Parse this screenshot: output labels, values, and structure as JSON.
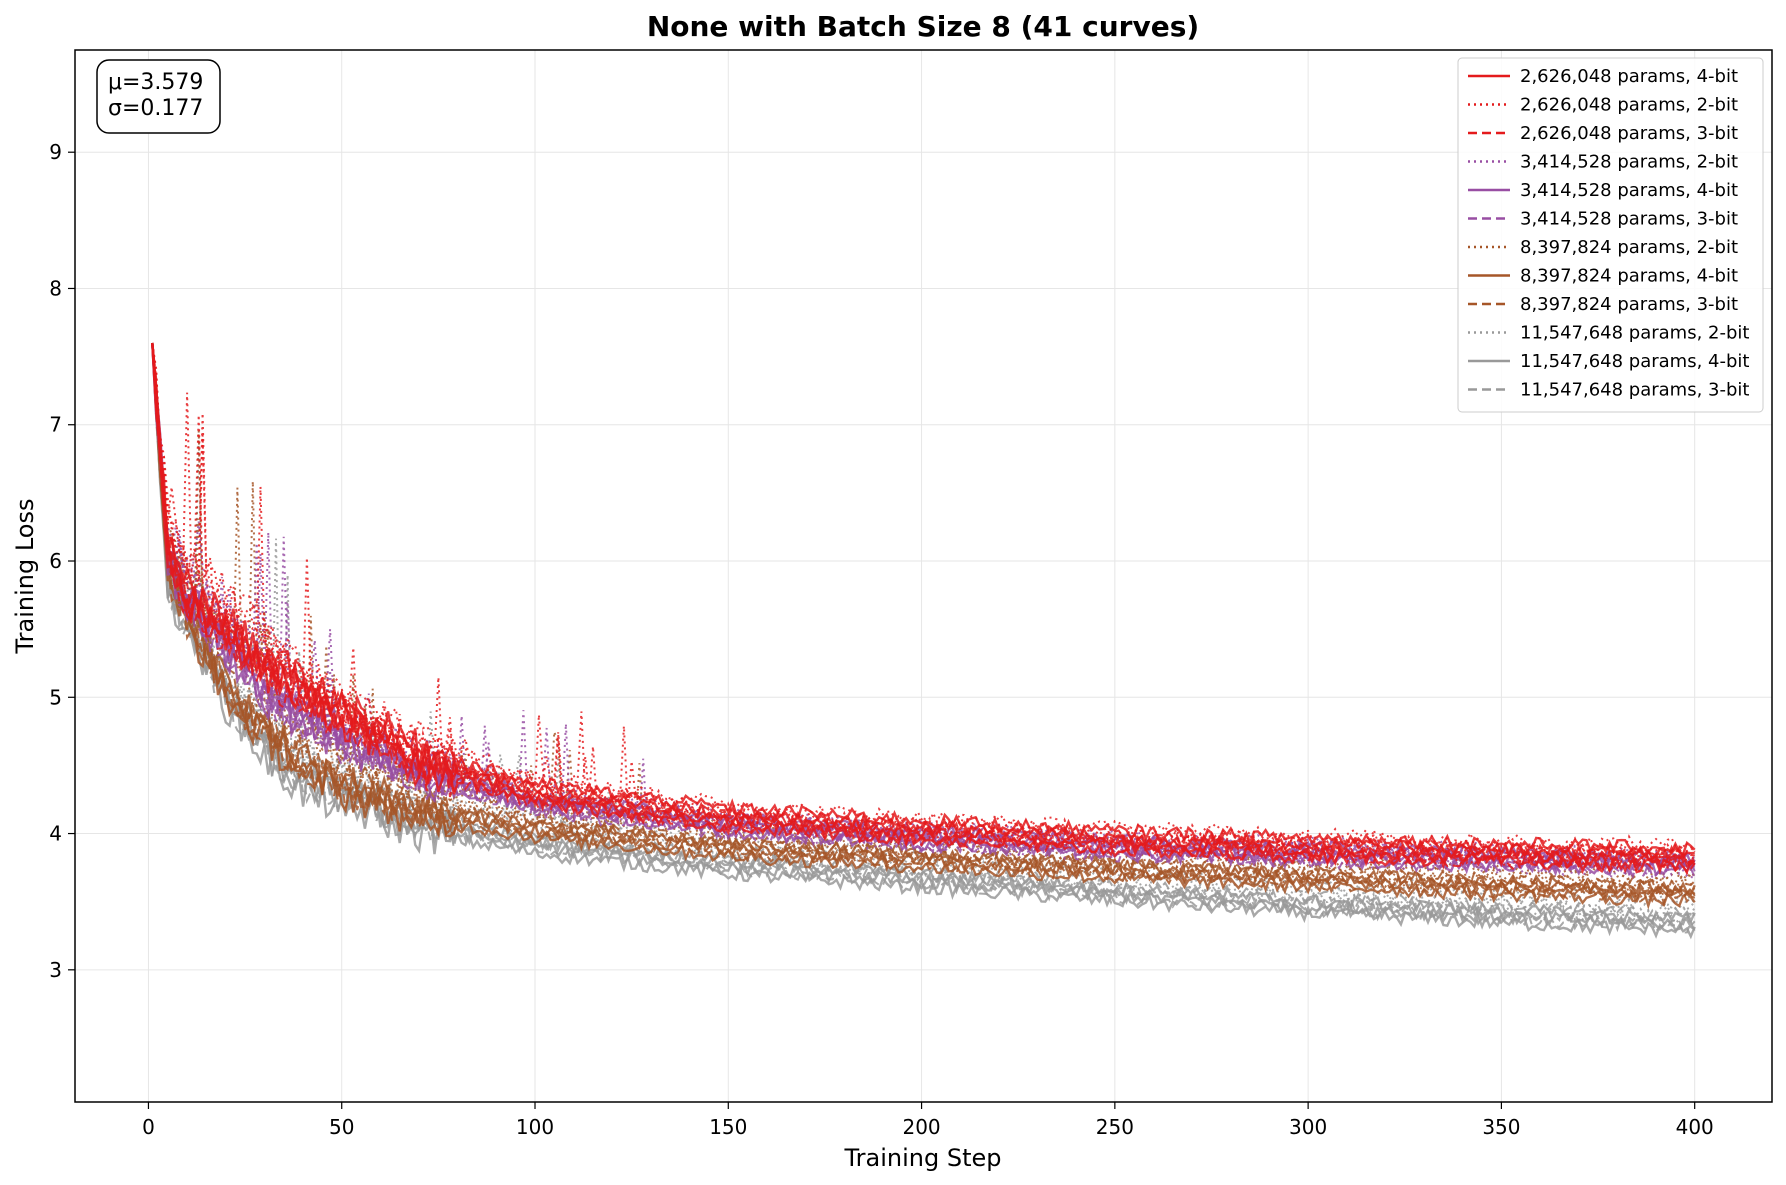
{
  "chart_data": {
    "type": "line",
    "title": "None with Batch Size 8 (41 curves)",
    "xlabel": "Training Step",
    "ylabel": "Training Loss",
    "xlim": [
      -19,
      420
    ],
    "ylim": [
      2.03,
      9.75
    ],
    "xticks": [
      0,
      50,
      100,
      150,
      200,
      250,
      300,
      350,
      400
    ],
    "yticks": [
      3,
      4,
      5,
      6,
      7,
      8,
      9
    ],
    "grid": true,
    "legend_position": "top-right",
    "stats": {
      "mu": "μ=3.579",
      "sigma": "σ=0.177"
    },
    "total_curves": 41,
    "colors": {
      "red": "#e41a1c",
      "purple": "#984ea3",
      "brown": "#a65628",
      "gray": "#999999"
    },
    "series": [
      {
        "name": "2,626,048 params, 4-bit",
        "color": "#e41a1c",
        "style": "solid",
        "x": [
          1,
          5,
          10,
          20,
          30,
          40,
          50,
          70,
          100,
          150,
          200,
          250,
          300,
          350,
          400
        ],
        "y": [
          7.6,
          6.1,
          5.75,
          5.5,
          5.25,
          5.05,
          4.9,
          4.55,
          4.3,
          4.12,
          4.03,
          3.95,
          3.9,
          3.86,
          3.82
        ],
        "copies": 4
      },
      {
        "name": "2,626,048 params, 2-bit",
        "color": "#e41a1c",
        "style": "dotted",
        "x": [
          1,
          5,
          10,
          20,
          30,
          40,
          50,
          70,
          100,
          150,
          200,
          250,
          300,
          350,
          400
        ],
        "y": [
          7.6,
          6.3,
          6.0,
          5.7,
          5.45,
          5.15,
          4.95,
          4.65,
          4.35,
          4.15,
          4.05,
          3.98,
          3.93,
          3.88,
          3.85
        ],
        "copies": 4
      },
      {
        "name": "2,626,048 params, 3-bit",
        "color": "#e41a1c",
        "style": "dashed",
        "x": [
          1,
          5,
          10,
          20,
          30,
          40,
          50,
          70,
          100,
          150,
          200,
          250,
          300,
          350,
          400
        ],
        "y": [
          7.6,
          6.05,
          5.7,
          5.45,
          5.2,
          5.0,
          4.85,
          4.5,
          4.27,
          4.1,
          4.0,
          3.93,
          3.88,
          3.84,
          3.8
        ],
        "copies": 3
      },
      {
        "name": "3,414,528 params, 2-bit",
        "color": "#984ea3",
        "style": "dotted",
        "x": [
          1,
          5,
          10,
          20,
          30,
          40,
          50,
          70,
          100,
          150,
          200,
          250,
          300,
          350,
          400
        ],
        "y": [
          7.6,
          6.2,
          5.95,
          5.55,
          5.2,
          4.95,
          4.8,
          4.5,
          4.25,
          4.08,
          3.98,
          3.92,
          3.87,
          3.82,
          3.78
        ],
        "copies": 4
      },
      {
        "name": "3,414,528 params, 4-bit",
        "color": "#984ea3",
        "style": "solid",
        "x": [
          1,
          5,
          10,
          20,
          30,
          40,
          50,
          70,
          100,
          150,
          200,
          250,
          300,
          350,
          400
        ],
        "y": [
          7.6,
          6.0,
          5.7,
          5.4,
          5.05,
          4.85,
          4.7,
          4.45,
          4.23,
          4.06,
          3.97,
          3.9,
          3.85,
          3.81,
          3.78
        ],
        "copies": 3
      },
      {
        "name": "3,414,528 params, 3-bit",
        "color": "#984ea3",
        "style": "dashed",
        "x": [
          1,
          5,
          10,
          20,
          30,
          40,
          50,
          70,
          100,
          150,
          200,
          250,
          300,
          350,
          400
        ],
        "y": [
          7.6,
          6.0,
          5.68,
          5.38,
          5.03,
          4.83,
          4.68,
          4.43,
          4.21,
          4.05,
          3.96,
          3.89,
          3.84,
          3.8,
          3.77
        ],
        "copies": 3
      },
      {
        "name": "8,397,824 params, 2-bit",
        "color": "#a65628",
        "style": "dotted",
        "x": [
          1,
          5,
          10,
          20,
          30,
          40,
          50,
          70,
          100,
          150,
          200,
          250,
          300,
          350,
          400
        ],
        "y": [
          7.6,
          6.1,
          5.85,
          5.45,
          5.05,
          4.75,
          4.6,
          4.35,
          4.15,
          3.98,
          3.88,
          3.8,
          3.74,
          3.68,
          3.63
        ],
        "copies": 4
      },
      {
        "name": "8,397,824 params, 4-bit",
        "color": "#a65628",
        "style": "solid",
        "x": [
          1,
          5,
          10,
          20,
          30,
          40,
          50,
          70,
          100,
          150,
          200,
          250,
          300,
          350,
          400
        ],
        "y": [
          7.6,
          5.9,
          5.6,
          5.05,
          4.75,
          4.5,
          4.35,
          4.15,
          4.02,
          3.88,
          3.8,
          3.72,
          3.66,
          3.6,
          3.55
        ],
        "copies": 3
      },
      {
        "name": "8,397,824 params, 3-bit",
        "color": "#a65628",
        "style": "dashed",
        "x": [
          1,
          5,
          10,
          20,
          30,
          40,
          50,
          70,
          100,
          150,
          200,
          250,
          300,
          350,
          400
        ],
        "y": [
          7.6,
          5.92,
          5.62,
          5.1,
          4.78,
          4.52,
          4.38,
          4.18,
          4.05,
          3.9,
          3.82,
          3.74,
          3.68,
          3.62,
          3.57
        ],
        "copies": 3
      },
      {
        "name": "11,547,648 params, 2-bit",
        "color": "#999999",
        "style": "dotted",
        "x": [
          1,
          5,
          10,
          20,
          30,
          40,
          50,
          70,
          100,
          150,
          200,
          250,
          300,
          350,
          400
        ],
        "y": [
          7.6,
          6.05,
          5.75,
          5.2,
          4.8,
          4.55,
          4.45,
          4.2,
          4.05,
          3.88,
          3.76,
          3.67,
          3.58,
          3.51,
          3.45
        ],
        "copies": 4
      },
      {
        "name": "11,547,648 params, 4-bit",
        "color": "#999999",
        "style": "solid",
        "x": [
          1,
          5,
          10,
          20,
          30,
          40,
          50,
          70,
          100,
          150,
          200,
          250,
          300,
          350,
          400
        ],
        "y": [
          7.6,
          5.8,
          5.55,
          5.0,
          4.6,
          4.35,
          4.25,
          4.05,
          3.9,
          3.75,
          3.65,
          3.55,
          3.46,
          3.39,
          3.33
        ],
        "copies": 3
      },
      {
        "name": "11,547,648 params, 3-bit",
        "color": "#999999",
        "style": "dashed",
        "x": [
          1,
          5,
          10,
          20,
          30,
          40,
          50,
          70,
          100,
          150,
          200,
          250,
          300,
          350,
          400
        ],
        "y": [
          7.6,
          5.82,
          5.58,
          5.05,
          4.65,
          4.4,
          4.3,
          4.1,
          3.95,
          3.79,
          3.68,
          3.58,
          3.49,
          3.42,
          3.36
        ],
        "copies": 3
      }
    ]
  }
}
